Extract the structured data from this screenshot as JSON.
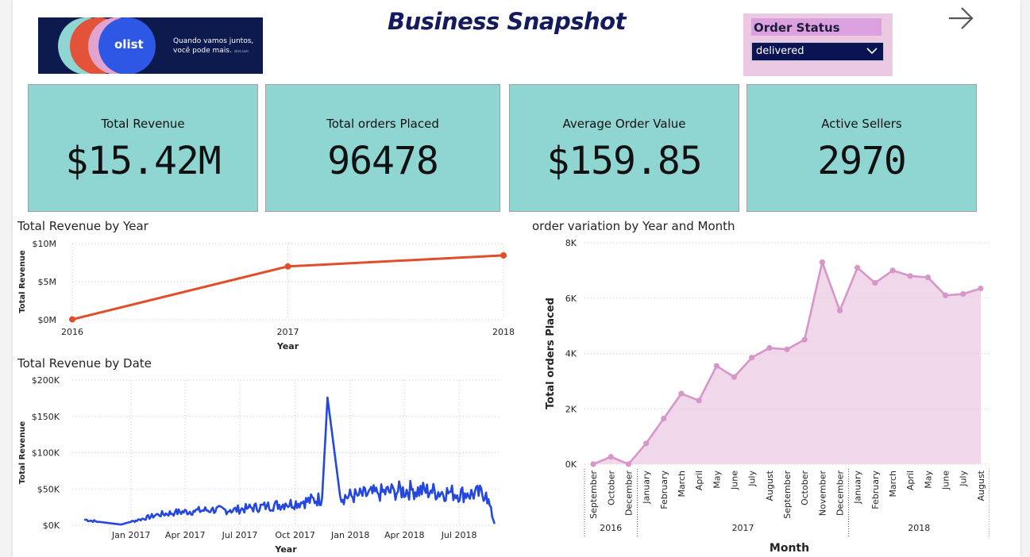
{
  "header": {
    "title": "Business Snapshot",
    "logo": {
      "word": "olist",
      "tagline_1": "Quando vamos juntos,",
      "tagline_2": "você pode mais.",
      "site": "olist.com"
    }
  },
  "slicer": {
    "title": "Order Status",
    "selected": "delivered"
  },
  "nav": {
    "icon": "arrow-right-icon"
  },
  "kpis": [
    {
      "label": "Total Revenue",
      "value": "$15.42M"
    },
    {
      "label": "Total orders Placed",
      "value": "96478"
    },
    {
      "label": "Average Order Value",
      "value": "$159.85"
    },
    {
      "label": "Active Sellers",
      "value": "2970"
    }
  ],
  "colors": {
    "kpi_bg": "#8fd6d2",
    "revenue_line": "#e04e2c",
    "daily_line": "#2447e0",
    "orders_area": "#ecc9e3",
    "orders_line": "#d696c8",
    "slicer_bg": "#ecc9e3",
    "title": "#131a5e"
  },
  "chart_data": [
    {
      "type": "line",
      "title": "Total Revenue by Year",
      "xlabel": "Year",
      "ylabel": "Total Revenue",
      "x": [
        "2016",
        "2017",
        "2018"
      ],
      "values": [
        0.05,
        7.0,
        8.45
      ],
      "ylim": [
        0,
        10
      ],
      "yticks": [
        "$0M",
        "$5M",
        "$10M"
      ],
      "grid": true
    },
    {
      "type": "line",
      "title": "Total Revenue by Date",
      "xlabel": "Year",
      "ylabel": "Total Revenue",
      "xticks": [
        "Jan 2017",
        "Apr 2017",
        "Jul 2017",
        "Oct 2017",
        "Jan 2018",
        "Apr 2018",
        "Jul 2018"
      ],
      "yticks": [
        "$0K",
        "$50K",
        "$100K",
        "$150K",
        "$200K"
      ],
      "ylim": [
        0,
        200000
      ],
      "x": [
        "2016-10",
        "2016-11",
        "2016-12",
        "2017-01",
        "2017-02",
        "2017-03",
        "2017-04",
        "2017-05",
        "2017-06",
        "2017-07",
        "2017-08",
        "2017-09",
        "2017-10",
        "2017-11",
        "2017-11-24",
        "2017-12",
        "2018-01",
        "2018-02",
        "2018-03",
        "2018-04",
        "2018-05",
        "2018-06",
        "2018-07",
        "2018-08",
        "2018-08-29"
      ],
      "values": [
        8000,
        4000,
        1000,
        8000,
        15000,
        18000,
        20000,
        22000,
        21000,
        24000,
        27000,
        30000,
        33000,
        38000,
        176000,
        40000,
        42000,
        45000,
        48000,
        50000,
        48000,
        46000,
        44000,
        45000,
        2000
      ],
      "grid": true
    },
    {
      "type": "area",
      "title": "order variation by Year and Month",
      "xlabel": "Month",
      "ylabel": "Total orders Placed",
      "ylim": [
        0,
        8000
      ],
      "yticks": [
        "0K",
        "2K",
        "4K",
        "6K",
        "8K"
      ],
      "groups": [
        {
          "label": "2016",
          "count": 3
        },
        {
          "label": "2017",
          "count": 12
        },
        {
          "label": "2018",
          "count": 8
        }
      ],
      "categories": [
        "September",
        "October",
        "December",
        "January",
        "February",
        "March",
        "April",
        "May",
        "June",
        "July",
        "August",
        "September",
        "October",
        "November",
        "December",
        "January",
        "February",
        "March",
        "April",
        "May",
        "June",
        "July",
        "August"
      ],
      "values": [
        1,
        265,
        1,
        750,
        1650,
        2550,
        2300,
        3550,
        3150,
        3850,
        4200,
        4150,
        4500,
        7300,
        5550,
        7100,
        6550,
        7000,
        6800,
        6750,
        6100,
        6150,
        6350
      ],
      "grid": true
    }
  ]
}
